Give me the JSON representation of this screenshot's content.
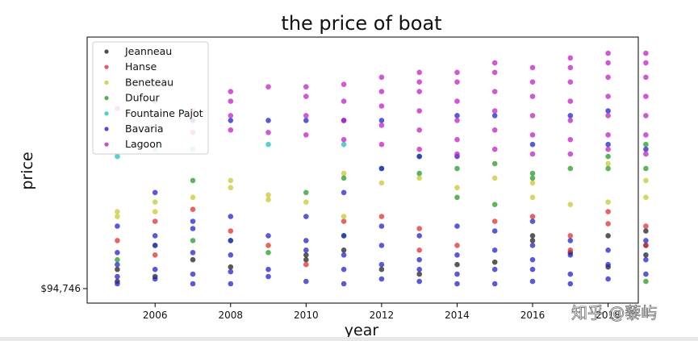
{
  "chart_data": {
    "type": "scatter",
    "title": "the price of boat",
    "xlabel": "year",
    "ylabel": "price",
    "xlim": [
      2004.2,
      2018.8
    ],
    "ylim": [
      0,
      100
    ],
    "x_ticks": [
      2006,
      2008,
      2010,
      2012,
      2014,
      2016,
      2018
    ],
    "y_tick_labels": [
      "$94,746"
    ],
    "legend_position": "upper-left",
    "grid": false,
    "series": [
      {
        "name": "Jeanneau",
        "color": "#222222",
        "points": [
          [
            2005,
            3
          ],
          [
            2005,
            8
          ],
          [
            2006,
            5
          ],
          [
            2007,
            12
          ],
          [
            2008,
            9
          ],
          [
            2010,
            14
          ],
          [
            2010,
            12
          ],
          [
            2011,
            16
          ],
          [
            2012,
            8
          ],
          [
            2013,
            6
          ],
          [
            2014,
            10
          ],
          [
            2015,
            11
          ],
          [
            2016,
            20
          ],
          [
            2016,
            22
          ],
          [
            2017,
            15
          ],
          [
            2018,
            9
          ],
          [
            2018,
            22
          ],
          [
            2019,
            24
          ],
          [
            2019,
            18
          ],
          [
            2019,
            14
          ]
        ]
      },
      {
        "name": "Hanse",
        "color": "#e03030",
        "points": [
          [
            2005,
            20
          ],
          [
            2006,
            28
          ],
          [
            2006,
            14
          ],
          [
            2007,
            33
          ],
          [
            2008,
            24
          ],
          [
            2009,
            18
          ],
          [
            2010,
            10
          ],
          [
            2011,
            28
          ],
          [
            2012,
            30
          ],
          [
            2013,
            25
          ],
          [
            2013,
            16
          ],
          [
            2014,
            18
          ],
          [
            2015,
            28
          ],
          [
            2016,
            30
          ],
          [
            2017,
            22
          ],
          [
            2017,
            16
          ],
          [
            2018,
            27
          ],
          [
            2018,
            32
          ],
          [
            2019,
            26
          ],
          [
            2019,
            18
          ]
        ]
      },
      {
        "name": "Beneteau",
        "color": "#c8c830",
        "points": [
          [
            2005,
            30
          ],
          [
            2005,
            32
          ],
          [
            2006,
            32
          ],
          [
            2006,
            36
          ],
          [
            2007,
            38
          ],
          [
            2008,
            42
          ],
          [
            2008,
            45
          ],
          [
            2009,
            37
          ],
          [
            2009,
            39
          ],
          [
            2010,
            36
          ],
          [
            2011,
            48
          ],
          [
            2011,
            30
          ],
          [
            2012,
            44
          ],
          [
            2013,
            46
          ],
          [
            2014,
            42
          ],
          [
            2015,
            46
          ],
          [
            2016,
            38
          ],
          [
            2016,
            44
          ],
          [
            2017,
            35
          ],
          [
            2018,
            36
          ],
          [
            2018,
            52
          ],
          [
            2019,
            38
          ],
          [
            2019,
            45
          ]
        ]
      },
      {
        "name": "Dufour",
        "color": "#2a9a2a",
        "points": [
          [
            2005,
            12
          ],
          [
            2006,
            18
          ],
          [
            2007,
            20
          ],
          [
            2007,
            45
          ],
          [
            2008,
            20
          ],
          [
            2009,
            15
          ],
          [
            2010,
            40
          ],
          [
            2011,
            46
          ],
          [
            2011,
            22
          ],
          [
            2012,
            50
          ],
          [
            2013,
            48
          ],
          [
            2013,
            55
          ],
          [
            2014,
            50
          ],
          [
            2014,
            38
          ],
          [
            2015,
            52
          ],
          [
            2015,
            35
          ],
          [
            2016,
            48
          ],
          [
            2016,
            46
          ],
          [
            2017,
            50
          ],
          [
            2018,
            55
          ],
          [
            2018,
            50
          ],
          [
            2019,
            50
          ],
          [
            2019,
            60
          ],
          [
            2019,
            3
          ]
        ]
      },
      {
        "name": "Fountaine Pajot",
        "color": "#20c0c0",
        "points": [
          [
            2005,
            55
          ],
          [
            2006,
            58
          ],
          [
            2007,
            58
          ],
          [
            2009,
            60
          ],
          [
            2011,
            60
          ]
        ]
      },
      {
        "name": "Bavaria",
        "color": "#2222cc",
        "points": [
          [
            2005,
            2
          ],
          [
            2005,
            5
          ],
          [
            2005,
            10
          ],
          [
            2005,
            15
          ],
          [
            2005,
            26
          ],
          [
            2006,
            4
          ],
          [
            2006,
            8
          ],
          [
            2006,
            18
          ],
          [
            2006,
            22
          ],
          [
            2006,
            40
          ],
          [
            2007,
            2
          ],
          [
            2007,
            6
          ],
          [
            2007,
            15
          ],
          [
            2007,
            25
          ],
          [
            2007,
            28
          ],
          [
            2007,
            70
          ],
          [
            2008,
            2
          ],
          [
            2008,
            7
          ],
          [
            2008,
            14
          ],
          [
            2008,
            20
          ],
          [
            2008,
            30
          ],
          [
            2008,
            70
          ],
          [
            2009,
            5
          ],
          [
            2009,
            8
          ],
          [
            2009,
            22
          ],
          [
            2009,
            70
          ],
          [
            2010,
            3
          ],
          [
            2010,
            16
          ],
          [
            2010,
            20
          ],
          [
            2010,
            30
          ],
          [
            2010,
            70
          ],
          [
            2011,
            2
          ],
          [
            2011,
            8
          ],
          [
            2011,
            14
          ],
          [
            2011,
            22
          ],
          [
            2011,
            40
          ],
          [
            2011,
            70
          ],
          [
            2012,
            4
          ],
          [
            2012,
            10
          ],
          [
            2012,
            18
          ],
          [
            2012,
            26
          ],
          [
            2012,
            50
          ],
          [
            2012,
            70
          ],
          [
            2013,
            3
          ],
          [
            2013,
            8
          ],
          [
            2013,
            12
          ],
          [
            2013,
            22
          ],
          [
            2013,
            55
          ],
          [
            2014,
            2
          ],
          [
            2014,
            6
          ],
          [
            2014,
            14
          ],
          [
            2014,
            26
          ],
          [
            2014,
            55
          ],
          [
            2014,
            72
          ],
          [
            2015,
            2
          ],
          [
            2015,
            8
          ],
          [
            2015,
            16
          ],
          [
            2015,
            24
          ],
          [
            2015,
            72
          ],
          [
            2016,
            3
          ],
          [
            2016,
            8
          ],
          [
            2016,
            12
          ],
          [
            2016,
            18
          ],
          [
            2016,
            28
          ],
          [
            2016,
            60
          ],
          [
            2017,
            2
          ],
          [
            2017,
            6
          ],
          [
            2017,
            14
          ],
          [
            2017,
            20
          ],
          [
            2017,
            72
          ],
          [
            2018,
            4
          ],
          [
            2018,
            10
          ],
          [
            2018,
            16
          ],
          [
            2018,
            60
          ],
          [
            2018,
            74
          ],
          [
            2019,
            6
          ],
          [
            2019,
            12
          ],
          [
            2019,
            20
          ],
          [
            2019,
            58
          ]
        ]
      },
      {
        "name": "Lagoon",
        "color": "#c020c0",
        "points": [
          [
            2005,
            75
          ],
          [
            2006,
            72
          ],
          [
            2006,
            78
          ],
          [
            2007,
            65
          ],
          [
            2007,
            74
          ],
          [
            2008,
            66
          ],
          [
            2008,
            72
          ],
          [
            2008,
            78
          ],
          [
            2008,
            82
          ],
          [
            2009,
            65
          ],
          [
            2009,
            84
          ],
          [
            2010,
            64
          ],
          [
            2010,
            72
          ],
          [
            2010,
            80
          ],
          [
            2010,
            84
          ],
          [
            2011,
            62
          ],
          [
            2011,
            70
          ],
          [
            2011,
            78
          ],
          [
            2011,
            85
          ],
          [
            2012,
            60
          ],
          [
            2012,
            68
          ],
          [
            2012,
            76
          ],
          [
            2012,
            82
          ],
          [
            2012,
            88
          ],
          [
            2013,
            58
          ],
          [
            2013,
            66
          ],
          [
            2013,
            74
          ],
          [
            2013,
            82
          ],
          [
            2013,
            86
          ],
          [
            2013,
            90
          ],
          [
            2014,
            56
          ],
          [
            2014,
            62
          ],
          [
            2014,
            70
          ],
          [
            2014,
            78
          ],
          [
            2014,
            86
          ],
          [
            2014,
            90
          ],
          [
            2015,
            58
          ],
          [
            2015,
            66
          ],
          [
            2015,
            74
          ],
          [
            2015,
            82
          ],
          [
            2015,
            90
          ],
          [
            2015,
            94
          ],
          [
            2016,
            56
          ],
          [
            2016,
            64
          ],
          [
            2016,
            72
          ],
          [
            2016,
            80
          ],
          [
            2016,
            86
          ],
          [
            2016,
            92
          ],
          [
            2017,
            56
          ],
          [
            2017,
            62
          ],
          [
            2017,
            70
          ],
          [
            2017,
            78
          ],
          [
            2017,
            86
          ],
          [
            2017,
            92
          ],
          [
            2017,
            96
          ],
          [
            2018,
            58
          ],
          [
            2018,
            64
          ],
          [
            2018,
            72
          ],
          [
            2018,
            80
          ],
          [
            2018,
            88
          ],
          [
            2018,
            94
          ],
          [
            2018,
            98
          ],
          [
            2019,
            56
          ],
          [
            2019,
            64
          ],
          [
            2019,
            72
          ],
          [
            2019,
            80
          ],
          [
            2019,
            88
          ],
          [
            2019,
            94
          ],
          [
            2019,
            98
          ]
        ]
      }
    ]
  },
  "watermark": {
    "text": "知乎 @藜屿"
  }
}
